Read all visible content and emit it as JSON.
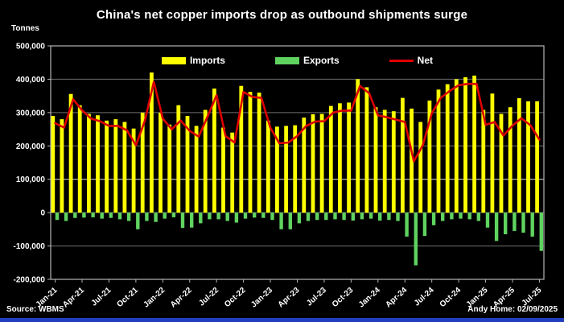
{
  "title": "China's net copper imports drop as outbound shipments surge",
  "y_axis": {
    "units": "Tonnes"
  },
  "legend": {
    "imports": "Imports",
    "exports": "Exports",
    "net": "Net"
  },
  "footer": {
    "source": "Source: WBMS",
    "credit": "Andy Home: 02/09/2025"
  },
  "colors": {
    "background": "#000000",
    "text": "#ffffff",
    "imports": "#ffff00",
    "exports": "#5fd35f",
    "net": "#dd0000",
    "grid": "#6f6f6f",
    "grid_bright": "#e0e0e0",
    "border": "#b5b5b5",
    "bottom_strip": "#1f3fbf"
  },
  "chart_data": {
    "type": "bar",
    "note_type": "clustered monthly bars (Imports above zero, Exports below zero) with Net line overlay",
    "months": [
      "Jan-21",
      "Feb-21",
      "Mar-21",
      "Apr-21",
      "May-21",
      "Jun-21",
      "Jul-21",
      "Aug-21",
      "Sep-21",
      "Oct-21",
      "Nov-21",
      "Dec-21",
      "Jan-22",
      "Feb-22",
      "Mar-22",
      "Apr-22",
      "May-22",
      "Jun-22",
      "Jul-22",
      "Aug-22",
      "Sep-22",
      "Oct-22",
      "Nov-22",
      "Dec-22",
      "Jan-23",
      "Feb-23",
      "Mar-23",
      "Apr-23",
      "May-23",
      "Jun-23",
      "Jul-23",
      "Aug-23",
      "Sep-23",
      "Oct-23",
      "Nov-23",
      "Dec-23",
      "Jan-24",
      "Feb-24",
      "Mar-24",
      "Apr-24",
      "May-24",
      "Jun-24",
      "Jul-24",
      "Aug-24",
      "Sep-24",
      "Oct-24",
      "Nov-24",
      "Dec-24",
      "Jan-25",
      "Feb-25",
      "Mar-25",
      "Apr-25",
      "May-25",
      "Jun-25",
      "Jul-25"
    ],
    "series": [
      {
        "name": "Imports",
        "type": "bar",
        "color": "#ffff00",
        "values": [
          290000,
          280000,
          356000,
          322000,
          296000,
          292000,
          276000,
          280000,
          272000,
          252000,
          300000,
          420000,
          300000,
          264000,
          322000,
          290000,
          260000,
          308000,
          372000,
          255000,
          240000,
          380000,
          362000,
          360000,
          276000,
          258000,
          260000,
          262000,
          285000,
          295000,
          296000,
          320000,
          328000,
          330000,
          400000,
          376000,
          316000,
          308000,
          304000,
          344000,
          312000,
          272000,
          336000,
          369000,
          385000,
          400000,
          406000,
          411000,
          308000,
          357000,
          296000,
          316000,
          343000,
          334000,
          334000
        ]
      },
      {
        "name": "Exports",
        "type": "bar",
        "color": "#5fd35f",
        "values": [
          -22000,
          -25000,
          -16000,
          -15000,
          -14000,
          -18000,
          -16000,
          -20000,
          -25000,
          -50000,
          -25000,
          -28000,
          -18000,
          -14000,
          -46000,
          -45000,
          -32000,
          -20000,
          -20000,
          -25000,
          -30000,
          -18000,
          -15000,
          -16000,
          -22000,
          -50000,
          -50000,
          -32000,
          -25000,
          -22000,
          -22000,
          -20000,
          -22000,
          -24000,
          -20000,
          -18000,
          -24000,
          -22000,
          -25000,
          -72000,
          -158000,
          -70000,
          -38000,
          -25000,
          -20000,
          -18000,
          -20000,
          -25000,
          -45000,
          -85000,
          -65000,
          -55000,
          -60000,
          -72000,
          -115000
        ]
      },
      {
        "name": "Net",
        "type": "line",
        "color": "#dd0000",
        "values": [
          268000,
          255000,
          340000,
          307000,
          282000,
          274000,
          260000,
          260000,
          247000,
          202000,
          275000,
          392000,
          282000,
          250000,
          276000,
          245000,
          228000,
          288000,
          352000,
          230000,
          210000,
          362000,
          347000,
          344000,
          254000,
          208000,
          210000,
          230000,
          260000,
          273000,
          274000,
          300000,
          306000,
          306000,
          380000,
          358000,
          292000,
          286000,
          279000,
          272000,
          154000,
          202000,
          298000,
          344000,
          365000,
          382000,
          386000,
          386000,
          263000,
          272000,
          231000,
          261000,
          283000,
          262000,
          219000
        ]
      }
    ],
    "y_ticks": {
      "values": [
        500000,
        400000,
        300000,
        200000,
        100000,
        0,
        -100000,
        -200000
      ],
      "labels": [
        "500,000",
        "400,000",
        "300,000",
        "200,000",
        "100,000",
        "0",
        "-100,000",
        "-200,000"
      ]
    },
    "x_tick_every": 3,
    "x_tick_labels": [
      "Jan-21",
      "Apr-21",
      "Jul-21",
      "Oct-21",
      "Jan-22",
      "Apr-22",
      "Jul-22",
      "Oct-22",
      "Jan-23",
      "Apr-23",
      "Jul-23",
      "Oct-23",
      "Jan-24",
      "Apr-24",
      "Jul-24",
      "Oct-24",
      "Jan-25",
      "Apr-25",
      "Jul-25"
    ],
    "ylim": [
      -200000,
      500000
    ],
    "grid": true,
    "legend_position": "top-center"
  }
}
